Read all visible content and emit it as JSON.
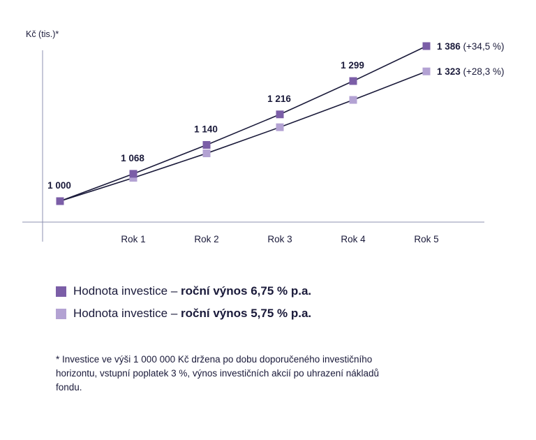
{
  "chart_data": {
    "type": "line",
    "ylabel": "Kč (tis.)*",
    "categories": [
      "",
      "Rok 1",
      "Rok 2",
      "Rok 3",
      "Rok 4",
      "Rok 5"
    ],
    "ylim": [
      880,
      1440
    ],
    "series": [
      {
        "name": "Hodnota investice – roční výnos 6,75 % p.a.",
        "values": [
          1000,
          1068,
          1140,
          1216,
          1299,
          1386
        ],
        "labels": [
          "1 000",
          "1 068",
          "1 140",
          "1 216",
          "1 299",
          "1 386"
        ],
        "end_note": "(+34,5 %)",
        "color": "#7b5ea7"
      },
      {
        "name": "Hodnota investice – roční výnos 5,75 % p.a.",
        "values": [
          1000,
          1058,
          1119,
          1184,
          1252,
          1323
        ],
        "labels": [
          "",
          "",
          "",
          "",
          "",
          "1 323"
        ],
        "end_note": "(+28,3 %)",
        "color": "#b3a2d3"
      }
    ],
    "line_color": "#1a1a3a",
    "axis_color": "#8e90b0"
  },
  "legend": [
    {
      "prefix": "Hodnota investice – ",
      "bold": "roční výnos 6,75 % p.a.",
      "color": "#7b5ea7"
    },
    {
      "prefix": "Hodnota investice – ",
      "bold": "roční výnos 5,75 % p.a.",
      "color": "#b3a2d3"
    }
  ],
  "footnote": "* Investice ve výši 1 000 000 Kč držena po dobu doporučeného investičního horizontu, vstupní poplatek 3 %, výnos investičních akcií po uhrazení nákladů fondu."
}
